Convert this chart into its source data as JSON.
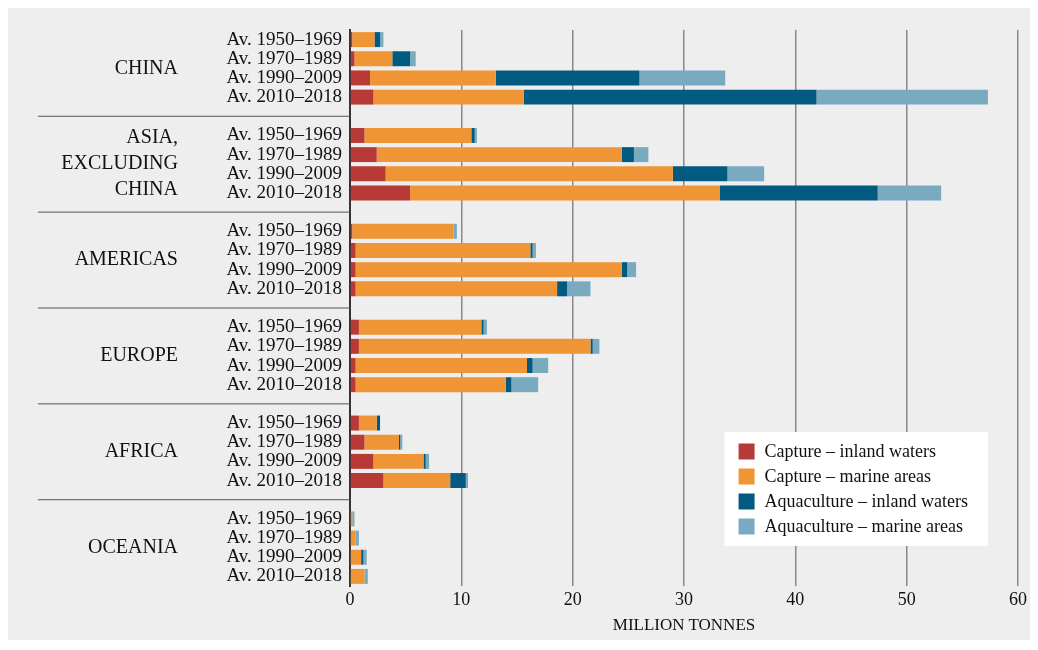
{
  "chart_data": {
    "type": "bar",
    "orientation": "horizontal",
    "stacked": true,
    "categories": [
      "Av. 1950–1969",
      "Av. 1970–1989",
      "Av. 1990–2009",
      "Av. 2010–2018",
      null,
      "Av. 1950–1969",
      "Av. 1970–1989",
      "Av. 1990–2009",
      "Av. 2010–2018",
      null,
      "Av. 1950–1969",
      "Av. 1970–1989",
      "Av. 1990–2009",
      "Av. 2010–2018",
      null,
      "Av. 1950–1969",
      "Av. 1970–1989",
      "Av. 1990–2009",
      "Av. 2010–2018",
      null,
      "Av. 1950–1969",
      "Av. 1970–1989",
      "Av. 1990–2009",
      "Av. 2010–2018",
      null,
      "Av. 1950–1969",
      "Av. 1970–1989",
      "Av. 1990–2009",
      "Av. 2010–2018"
    ],
    "series": [
      {
        "name": "Capture – inland waters",
        "color": "#b83a36",
        "values": [
          0.2,
          0.4,
          1.8,
          2.1,
          null,
          1.3,
          2.4,
          3.2,
          5.4,
          null,
          0.2,
          0.5,
          0.5,
          0.5,
          null,
          0.8,
          0.8,
          0.5,
          0.5,
          null,
          0.8,
          1.3,
          2.1,
          3.0,
          null,
          0,
          0,
          0,
          0
        ]
      },
      {
        "name": "Capture – marine areas",
        "color": "#f09535",
        "values": [
          2.0,
          3.4,
          11.3,
          13.5,
          null,
          9.6,
          22.0,
          25.8,
          27.8,
          null,
          9.1,
          15.7,
          23.9,
          18.1,
          null,
          11.0,
          20.8,
          15.4,
          13.5,
          null,
          1.6,
          3.1,
          4.5,
          6.0,
          null,
          0.2,
          0.5,
          1.0,
          1.3
        ]
      },
      {
        "name": "Aquaculture – inland waters",
        "color": "#035a80",
        "values": [
          0.5,
          1.6,
          12.9,
          26.3,
          null,
          0.3,
          1.1,
          4.9,
          14.2,
          null,
          0,
          0.2,
          0.5,
          0.9,
          null,
          0.2,
          0.2,
          0.5,
          0.5,
          null,
          0.3,
          0.1,
          0.2,
          1.4,
          null,
          0,
          0,
          0.2,
          0
        ]
      },
      {
        "name": "Aquaculture – marine areas",
        "color": "#7aaabf",
        "values": [
          0.3,
          0.5,
          7.7,
          15.4,
          null,
          0.2,
          1.3,
          3.3,
          5.7,
          null,
          0.3,
          0.3,
          0.8,
          2.1,
          null,
          0.3,
          0.6,
          1.4,
          2.4,
          null,
          0,
          0.2,
          0.3,
          0.2,
          null,
          0.2,
          0.3,
          0.3,
          0.3
        ]
      }
    ],
    "xlabel": "MILLION TONNES",
    "xlim": [
      0,
      60
    ],
    "xticks": [
      0,
      10,
      20,
      30,
      40,
      50,
      60
    ],
    "annotations": [
      "CHINA",
      "ASIA, EXCLUDING CHINA",
      "AMERICAS",
      "EUROPE",
      "AFRICA",
      "OCEANIA"
    ],
    "grid": "x",
    "legend": "bottom right"
  }
}
